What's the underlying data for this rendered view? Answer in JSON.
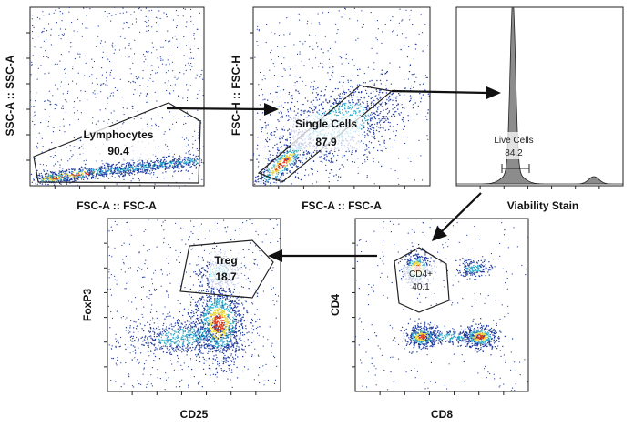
{
  "colors": {
    "density_low": "#1f3a9e",
    "density_mid": "#2ca9c9",
    "density_high": "#e8d43a",
    "density_peak": "#e23a1a",
    "histogram_fill": "#8c8c8c"
  },
  "plots": {
    "lymphocytes": {
      "x_axis_label": "FSC-A :: FSC-A",
      "y_axis_label": "SSC-A :: SSC-A",
      "gate_name": "Lymphocytes",
      "gate_value": "90.4"
    },
    "single_cells": {
      "x_axis_label": "FSC-A :: FSC-A",
      "y_axis_label": "FSC-H :: FSC-H",
      "gate_name": "Single Cells",
      "gate_value": "87.9"
    },
    "live_cells": {
      "x_axis_label": "Viability Stain",
      "y_axis_label": "",
      "gate_name": "Live Cells",
      "gate_value": "84.2"
    },
    "cd4": {
      "x_axis_label": "CD8",
      "y_axis_label": "CD4",
      "gate_name": "CD4+",
      "gate_value": "40.1"
    },
    "treg": {
      "x_axis_label": "CD25",
      "y_axis_label": "FoxP3",
      "gate_name": "Treg",
      "gate_value": "18.7"
    }
  },
  "flow": [
    {
      "from": "Lymphocytes",
      "to": "Single Cells"
    },
    {
      "from": "Single Cells",
      "to": "Live Cells"
    },
    {
      "from": "Live Cells",
      "to": "CD4+"
    },
    {
      "from": "CD4+",
      "to": "Treg"
    }
  ]
}
